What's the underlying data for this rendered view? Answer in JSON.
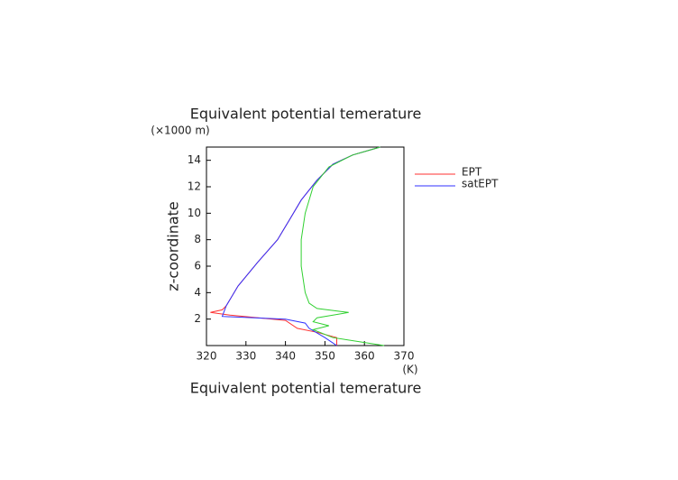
{
  "chart_data": {
    "type": "line",
    "title": "Equivalent potential temerature",
    "y_unit": "(×1000 m)",
    "y_label": "z-coordinate",
    "x_unit": "(K)",
    "x_label": "Equivalent potential temerature",
    "xlim": [
      320,
      370
    ],
    "xticks": [
      320,
      330,
      340,
      350,
      360,
      370
    ],
    "ylim": [
      0,
      15
    ],
    "yticks": [
      2,
      4,
      6,
      8,
      10,
      12,
      14
    ],
    "legend": "outside-right",
    "series": [
      {
        "name": "EPT",
        "color": "#ff3030",
        "x": [
          353,
          353,
          348,
          343,
          340,
          326,
          321,
          324,
          325,
          328,
          333,
          338,
          341,
          344,
          348,
          352,
          357,
          364
        ],
        "y": [
          0,
          0.6,
          1,
          1.3,
          1.9,
          2.3,
          2.5,
          2.7,
          3,
          4.5,
          6.3,
          8,
          9.5,
          11,
          12.5,
          13.7,
          14.4,
          15
        ]
      },
      {
        "name": "satEPT",
        "color": "#3030ff",
        "x": [
          353,
          350,
          346,
          345,
          340,
          324,
          325,
          328,
          333,
          338,
          341,
          344,
          348,
          352,
          357,
          364
        ],
        "y": [
          0,
          0.6,
          1.3,
          1.7,
          2,
          2.2,
          3,
          4.5,
          6.3,
          8,
          9.5,
          11,
          12.5,
          13.7,
          14.4,
          15
        ]
      },
      {
        "color": "#30d030",
        "x": [
          365,
          352,
          347,
          351,
          347,
          348,
          356,
          348,
          346,
          345,
          344,
          344,
          345,
          347,
          351,
          357,
          364
        ],
        "y": [
          0,
          0.6,
          1.2,
          1.5,
          1.8,
          2.1,
          2.5,
          2.8,
          3.2,
          4,
          6,
          8,
          10,
          12,
          13.5,
          14.4,
          15
        ]
      }
    ]
  }
}
